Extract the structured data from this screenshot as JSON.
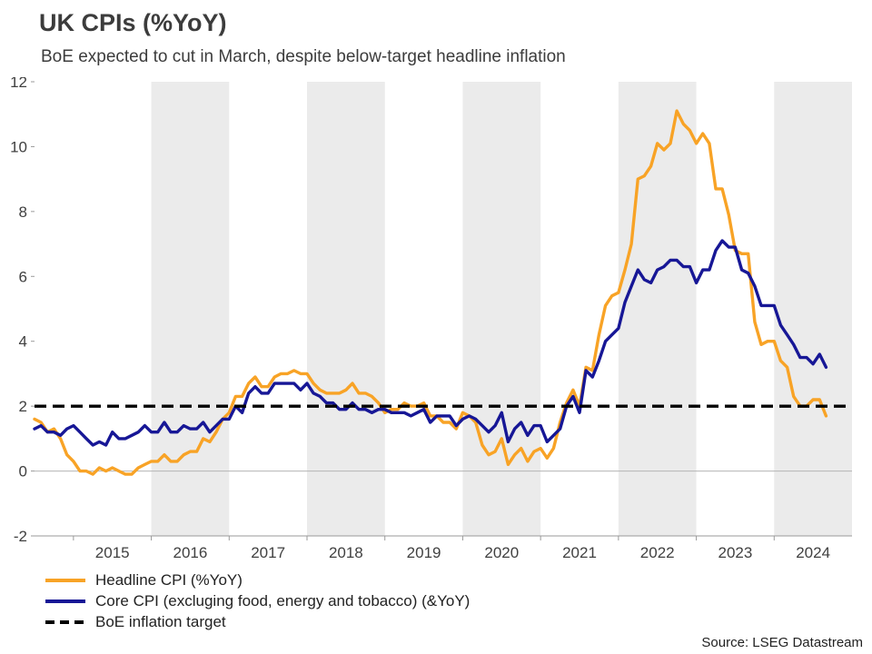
{
  "header": {
    "title": "UK CPIs (%YoY)",
    "subtitle": "BoE expected to cut in March, despite below-target headline inflation"
  },
  "footer": {
    "source": "Source: LSEG Datastream"
  },
  "chart_data": {
    "type": "line",
    "title": "UK CPIs (%YoY)",
    "subtitle": "BoE expected to cut in March, despite below-target headline inflation",
    "x_note": "monthly values, Jul 2014 to Sep 2024, x as decimal years",
    "x_start": 2014.5,
    "x_domain": [
      2014.5,
      2025.0
    ],
    "ylim": [
      -2,
      12
    ],
    "yticks": [
      -2,
      0,
      2,
      4,
      6,
      8,
      10,
      12
    ],
    "xticks": [
      2015,
      2016,
      2017,
      2018,
      2019,
      2020,
      2021,
      2022,
      2023,
      2024
    ],
    "grid": "horizontal zero line only",
    "band_color": "#ebebeb",
    "shaded_years": [
      2016,
      2018,
      2020,
      2022,
      2024
    ],
    "target": {
      "value": 2,
      "color": "#000000",
      "label": "BoE inflation target"
    },
    "series": [
      {
        "name": "Headline CPI (%YoY)",
        "color": "#F8A326",
        "values": [
          1.6,
          1.5,
          1.2,
          1.3,
          1.0,
          0.5,
          0.3,
          0.0,
          0.0,
          -0.1,
          0.1,
          0.0,
          0.1,
          0.0,
          -0.1,
          -0.1,
          0.1,
          0.2,
          0.3,
          0.3,
          0.5,
          0.3,
          0.3,
          0.5,
          0.6,
          0.6,
          1.0,
          0.9,
          1.2,
          1.6,
          1.8,
          2.3,
          2.3,
          2.7,
          2.9,
          2.6,
          2.6,
          2.9,
          3.0,
          3.0,
          3.1,
          3.0,
          3.0,
          2.7,
          2.5,
          2.4,
          2.4,
          2.4,
          2.5,
          2.7,
          2.4,
          2.4,
          2.3,
          2.1,
          1.8,
          1.9,
          1.9,
          2.1,
          2.0,
          2.0,
          2.1,
          1.7,
          1.7,
          1.5,
          1.5,
          1.3,
          1.8,
          1.7,
          1.5,
          0.8,
          0.5,
          0.6,
          1.0,
          0.2,
          0.5,
          0.7,
          0.3,
          0.6,
          0.7,
          0.4,
          0.7,
          1.5,
          2.1,
          2.5,
          2.0,
          3.2,
          3.1,
          4.2,
          5.1,
          5.4,
          5.5,
          6.2,
          7.0,
          9.0,
          9.1,
          9.4,
          10.1,
          9.9,
          10.1,
          11.1,
          10.7,
          10.5,
          10.1,
          10.4,
          10.1,
          8.7,
          8.7,
          7.9,
          6.8,
          6.7,
          6.7,
          4.6,
          3.9,
          4.0,
          4.0,
          3.4,
          3.2,
          2.3,
          2.0,
          2.0,
          2.2,
          2.2,
          1.7
        ]
      },
      {
        "name": "Core CPI (excluging food, energy and tobacco) (&YoY)",
        "color": "#171796",
        "values": [
          1.3,
          1.4,
          1.2,
          1.2,
          1.1,
          1.3,
          1.4,
          1.2,
          1.0,
          0.8,
          0.9,
          0.8,
          1.2,
          1.0,
          1.0,
          1.1,
          1.2,
          1.4,
          1.2,
          1.2,
          1.5,
          1.2,
          1.2,
          1.4,
          1.3,
          1.3,
          1.5,
          1.2,
          1.4,
          1.6,
          1.6,
          2.0,
          1.8,
          2.4,
          2.6,
          2.4,
          2.4,
          2.7,
          2.7,
          2.7,
          2.7,
          2.5,
          2.7,
          2.4,
          2.3,
          2.1,
          2.1,
          1.9,
          1.9,
          2.1,
          1.9,
          1.9,
          1.8,
          1.9,
          1.9,
          1.8,
          1.8,
          1.8,
          1.7,
          1.8,
          1.9,
          1.5,
          1.7,
          1.7,
          1.7,
          1.4,
          1.6,
          1.7,
          1.6,
          1.4,
          1.2,
          1.4,
          1.8,
          0.9,
          1.3,
          1.5,
          1.1,
          1.4,
          1.4,
          0.9,
          1.1,
          1.3,
          2.0,
          2.3,
          1.8,
          3.1,
          2.9,
          3.4,
          4.0,
          4.2,
          4.4,
          5.2,
          5.7,
          6.2,
          5.9,
          5.8,
          6.2,
          6.3,
          6.5,
          6.5,
          6.3,
          6.3,
          5.8,
          6.2,
          6.2,
          6.8,
          7.1,
          6.9,
          6.9,
          6.2,
          6.1,
          5.7,
          5.1,
          5.1,
          5.1,
          4.5,
          4.2,
          3.9,
          3.5,
          3.5,
          3.3,
          3.6,
          3.2
        ]
      }
    ],
    "legend": [
      {
        "label": "Headline CPI (%YoY)",
        "color": "#F8A326",
        "style": "solid"
      },
      {
        "label": "Core CPI (excluging food, energy and tobacco) (&YoY)",
        "color": "#171796",
        "style": "solid"
      },
      {
        "label": "BoE inflation target",
        "color": "#000000",
        "style": "dashed"
      }
    ],
    "legend_position": "bottom-left"
  }
}
